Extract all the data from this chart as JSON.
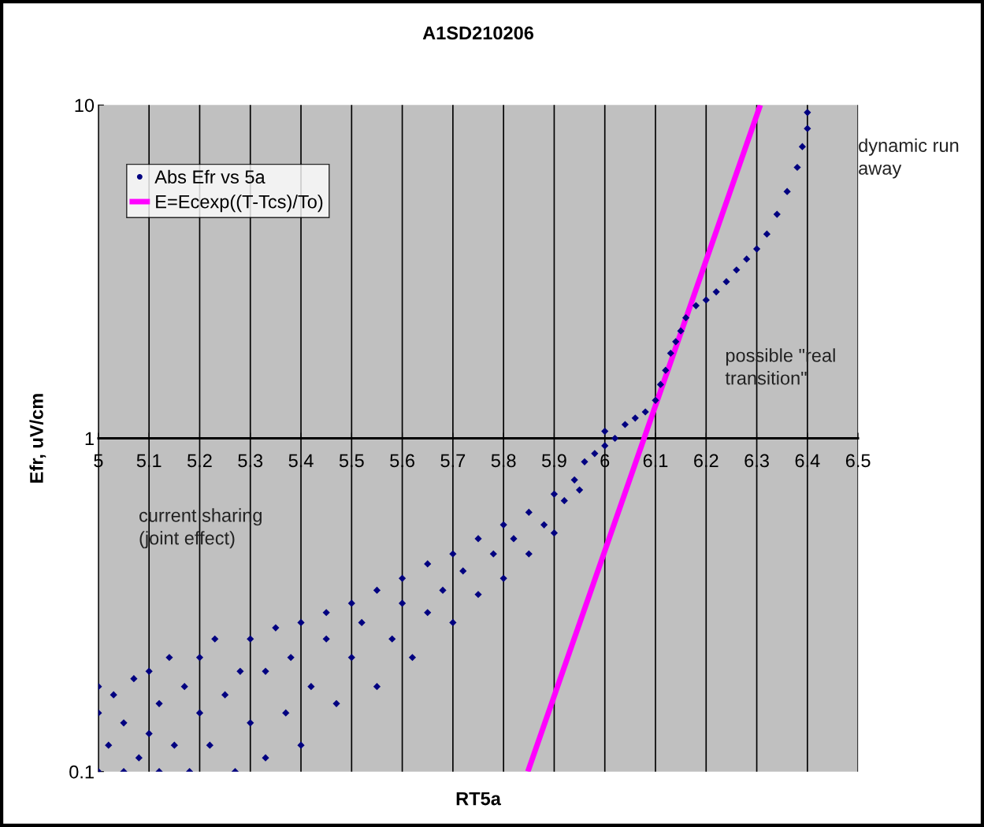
{
  "chart_data": {
    "type": "scatter",
    "title": "A1SD210206",
    "xlabel": "RT5a",
    "ylabel": "Efr, uV/cm",
    "log": "y",
    "grid": "x",
    "legend": "top left",
    "xlim": [
      5,
      6.5
    ],
    "xticks": [
      5,
      5.1,
      5.2,
      5.3,
      5.4,
      5.5,
      5.6,
      5.7,
      5.8,
      5.9,
      6,
      6.1,
      6.2,
      6.3,
      6.4,
      6.5
    ],
    "ylim": [
      0.1,
      10
    ],
    "yticks": [
      0.1,
      1,
      10
    ],
    "annotations": [
      "dynamic run\naway",
      "possible \"real\ntransition\"",
      "current sharing\n(joint effect)"
    ],
    "series": [
      {
        "name": "Abs Efr vs 5a",
        "marker": "diamond",
        "color": "#000080",
        "x": [
          5.0,
          5.0,
          5.0,
          5.02,
          5.03,
          5.05,
          5.05,
          5.07,
          5.08,
          5.1,
          5.1,
          5.12,
          5.12,
          5.14,
          5.15,
          5.17,
          5.18,
          5.2,
          5.2,
          5.22,
          5.23,
          5.25,
          5.27,
          5.28,
          5.3,
          5.3,
          5.33,
          5.33,
          5.35,
          5.37,
          5.38,
          5.4,
          5.4,
          5.42,
          5.45,
          5.45,
          5.47,
          5.5,
          5.5,
          5.52,
          5.55,
          5.55,
          5.58,
          5.6,
          5.6,
          5.62,
          5.65,
          5.65,
          5.68,
          5.7,
          5.7,
          5.72,
          5.75,
          5.75,
          5.78,
          5.8,
          5.8,
          5.82,
          5.85,
          5.85,
          5.88,
          5.9,
          5.9,
          5.92,
          5.94,
          5.95,
          5.96,
          5.98,
          6.0,
          6.0,
          6.02,
          6.04,
          6.06,
          6.08,
          6.1,
          6.11,
          6.12,
          6.13,
          6.14,
          6.15,
          6.16,
          6.18,
          6.2,
          6.22,
          6.24,
          6.26,
          6.28,
          6.3,
          6.32,
          6.34,
          6.36,
          6.38,
          6.39,
          6.4,
          6.4
        ],
        "values": [
          0.1,
          0.15,
          0.18,
          0.12,
          0.17,
          0.1,
          0.14,
          0.19,
          0.11,
          0.13,
          0.2,
          0.1,
          0.16,
          0.22,
          0.12,
          0.18,
          0.1,
          0.15,
          0.22,
          0.12,
          0.25,
          0.17,
          0.1,
          0.2,
          0.14,
          0.25,
          0.11,
          0.2,
          0.27,
          0.15,
          0.22,
          0.12,
          0.28,
          0.18,
          0.25,
          0.3,
          0.16,
          0.22,
          0.32,
          0.28,
          0.18,
          0.35,
          0.25,
          0.32,
          0.38,
          0.22,
          0.3,
          0.42,
          0.35,
          0.28,
          0.45,
          0.4,
          0.34,
          0.5,
          0.45,
          0.38,
          0.55,
          0.5,
          0.45,
          0.6,
          0.55,
          0.52,
          0.68,
          0.65,
          0.75,
          0.7,
          0.85,
          0.9,
          0.95,
          1.05,
          1.0,
          1.1,
          1.15,
          1.2,
          1.3,
          1.45,
          1.6,
          1.8,
          1.95,
          2.1,
          2.3,
          2.5,
          2.6,
          2.75,
          2.95,
          3.2,
          3.45,
          3.7,
          4.1,
          4.7,
          5.5,
          6.5,
          7.5,
          8.5,
          9.5
        ]
      },
      {
        "name": "E=Ecexp((T-Tcs)/To)",
        "type": "line",
        "line_style": "solid",
        "color": "#ff00ff",
        "x": [
          5.848,
          6.307
        ],
        "values": [
          0.1,
          10
        ]
      }
    ]
  }
}
